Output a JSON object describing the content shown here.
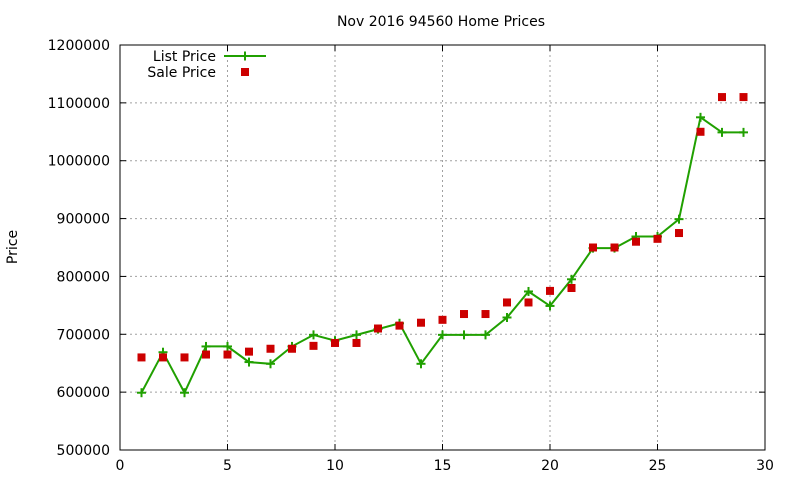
{
  "chart_data": {
    "type": "line",
    "title": "Nov 2016 94560 Home Prices",
    "xlabel": "",
    "ylabel": "Price",
    "xlim": [
      0,
      30
    ],
    "ylim": [
      500000,
      1200000
    ],
    "x_ticks": [
      0,
      5,
      10,
      15,
      20,
      25,
      30
    ],
    "y_ticks": [
      500000,
      600000,
      700000,
      800000,
      900000,
      1000000,
      1100000,
      1200000
    ],
    "grid": true,
    "legend_position": "top-left",
    "series": [
      {
        "name": "List Price",
        "style": "line-with-plus-markers",
        "color": "#20a000",
        "x": [
          1,
          2,
          3,
          4,
          5,
          6,
          7,
          8,
          9,
          10,
          11,
          12,
          13,
          14,
          15,
          16,
          17,
          18,
          19,
          20,
          21,
          22,
          23,
          24,
          25,
          26,
          27,
          28,
          29
        ],
        "y": [
          599000,
          669000,
          599000,
          679000,
          679000,
          652000,
          649000,
          679000,
          699000,
          689000,
          699000,
          709000,
          719000,
          649000,
          699000,
          699000,
          699000,
          729000,
          774000,
          749000,
          795000,
          849000,
          849000,
          869000,
          869000,
          899000,
          1075000,
          1049000,
          1049000
        ]
      },
      {
        "name": "Sale Price",
        "style": "square-markers",
        "color": "#cc0000",
        "x": [
          1,
          2,
          3,
          4,
          5,
          6,
          7,
          8,
          9,
          10,
          11,
          12,
          13,
          14,
          15,
          16,
          17,
          18,
          19,
          20,
          21,
          22,
          23,
          24,
          25,
          26,
          27,
          28,
          29
        ],
        "y": [
          660000,
          660000,
          660000,
          665000,
          665000,
          670000,
          675000,
          675000,
          680000,
          685000,
          685000,
          710000,
          715000,
          720000,
          725000,
          735000,
          735000,
          755000,
          755000,
          775000,
          780000,
          850000,
          850000,
          860000,
          865000,
          875000,
          1050000,
          1110000,
          1110000
        ]
      }
    ]
  }
}
